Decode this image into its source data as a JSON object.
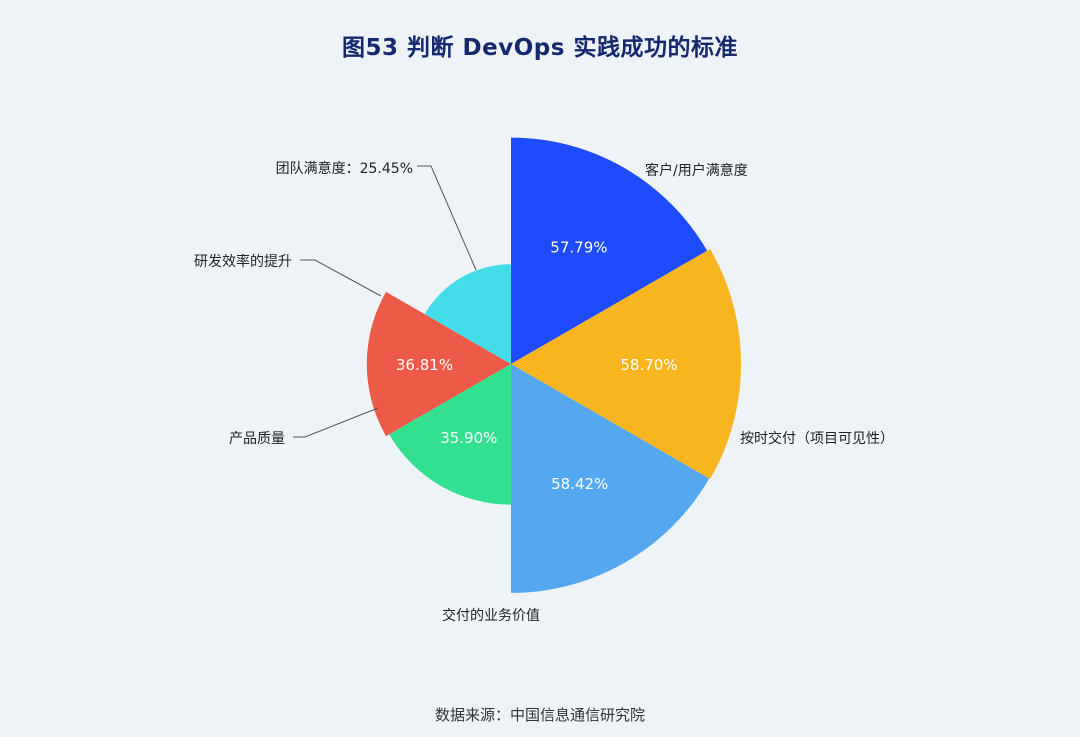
{
  "title": "图53 判断 DevOps 实践成功的标准",
  "source": "数据来源：中国信息通信研究院",
  "chart_data": {
    "type": "pie",
    "title": "图53 判断 DevOps 实践成功的标准",
    "variant": "nightingale-rose",
    "start": "12 o'clock, clockwise",
    "series": [
      {
        "name": "客户/用户满意度",
        "value": 57.79,
        "value_label": "57.79%",
        "color": "#1f4bff"
      },
      {
        "name": "按时交付（项目可见性）",
        "value": 58.7,
        "value_label": "58.70%",
        "color": "#f7b51f"
      },
      {
        "name": "交付的业务价值",
        "value": 58.42,
        "value_label": "58.42%",
        "color": "#55a8f0"
      },
      {
        "name": "产品质量",
        "value": 35.9,
        "value_label": "35.90%",
        "color": "#33e08f"
      },
      {
        "name": "研发效率的提升",
        "value": 36.81,
        "value_label": "36.81%",
        "color": "#ee5a48"
      },
      {
        "name": "团队满意度：25.45%",
        "value": 25.45,
        "value_label": "",
        "color": "#43dde9"
      }
    ]
  }
}
